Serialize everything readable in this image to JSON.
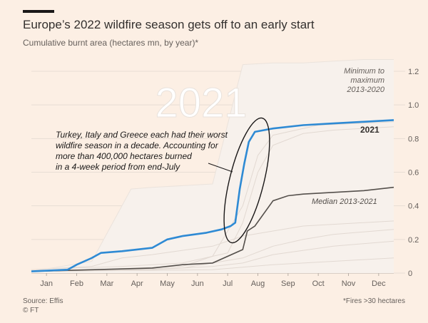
{
  "header": {
    "title": "Europe’s 2022 wildfire season gets off to an early start",
    "subtitle": "Cumulative burnt area (hectares mn, by year)*"
  },
  "footer": {
    "source": "Source: Effis",
    "credit": "© FT",
    "note": "*Fires >30 hectares"
  },
  "colors": {
    "background": "#fcefe4",
    "band": "#f7f1ec",
    "highlight": "#2e8ad4",
    "median": "#55504c",
    "other_years": "#e2d9d2",
    "grid": "#e7ddd4",
    "axis_text": "#66605c"
  },
  "chart_data": {
    "type": "line",
    "x_unit": "months (Jan to Dec)",
    "xticks": [
      "Jan",
      "Feb",
      "Mar",
      "Apr",
      "May",
      "Jun",
      "Jul",
      "Aug",
      "Sep",
      "Oct",
      "Nov",
      "Dec"
    ],
    "yticks": [
      "0",
      "0.2",
      "0.4",
      "0.6",
      "0.8",
      "1.0",
      "1.2"
    ],
    "ylim": [
      0,
      1.2
    ],
    "y_axis_side": "right",
    "grid": true,
    "watermark": "2021",
    "band": {
      "name": "Minimum to maximum 2013-2020",
      "label_lines": [
        "Minimum to",
        "maximum",
        "2013-2020"
      ],
      "upper": [
        [
          0,
          0.01
        ],
        [
          1,
          0.04
        ],
        [
          2,
          0.07
        ],
        [
          3.3,
          0.5
        ],
        [
          4,
          0.51
        ],
        [
          5,
          0.52
        ],
        [
          6,
          0.53
        ],
        [
          7,
          1.24
        ],
        [
          8,
          1.25
        ],
        [
          9,
          1.25
        ],
        [
          10,
          1.26
        ],
        [
          11,
          1.27
        ],
        [
          12,
          1.27
        ]
      ],
      "lower": [
        [
          0,
          0
        ],
        [
          12,
          0
        ]
      ]
    },
    "series": [
      {
        "name": "2021",
        "values": [
          [
            0,
            0.01
          ],
          [
            1.2,
            0.02
          ],
          [
            1.5,
            0.05
          ],
          [
            2,
            0.09
          ],
          [
            2.3,
            0.12
          ],
          [
            3,
            0.13
          ],
          [
            4,
            0.15
          ],
          [
            4.5,
            0.2
          ],
          [
            5,
            0.22
          ],
          [
            5.8,
            0.24
          ],
          [
            6.3,
            0.26
          ],
          [
            6.6,
            0.28
          ],
          [
            6.75,
            0.3
          ],
          [
            6.9,
            0.5
          ],
          [
            7.05,
            0.65
          ],
          [
            7.2,
            0.78
          ],
          [
            7.4,
            0.84
          ],
          [
            8,
            0.86
          ],
          [
            9,
            0.88
          ],
          [
            10,
            0.89
          ],
          [
            11,
            0.9
          ],
          [
            12,
            0.91
          ]
        ]
      },
      {
        "name": "Median 2013-2021",
        "values": [
          [
            0,
            0.01
          ],
          [
            2,
            0.02
          ],
          [
            4,
            0.03
          ],
          [
            5,
            0.05
          ],
          [
            6,
            0.06
          ],
          [
            7,
            0.14
          ],
          [
            7.15,
            0.25
          ],
          [
            7.4,
            0.28
          ],
          [
            8,
            0.43
          ],
          [
            8.5,
            0.46
          ],
          [
            9,
            0.47
          ],
          [
            10,
            0.48
          ],
          [
            11,
            0.49
          ],
          [
            12,
            0.51
          ]
        ]
      }
    ],
    "other_years": [
      [
        [
          0,
          0.01
        ],
        [
          1.5,
          0.03
        ],
        [
          3,
          0.04
        ],
        [
          5,
          0.06
        ],
        [
          6.5,
          0.12
        ],
        [
          7,
          0.3
        ],
        [
          7.5,
          0.6
        ],
        [
          8,
          0.76
        ],
        [
          9,
          0.83
        ],
        [
          10,
          0.85
        ],
        [
          12,
          0.87
        ]
      ],
      [
        [
          0,
          0.01
        ],
        [
          2,
          0.02
        ],
        [
          5,
          0.04
        ],
        [
          6,
          0.1
        ],
        [
          7,
          0.4
        ],
        [
          7.5,
          0.7
        ],
        [
          8,
          0.82
        ],
        [
          9.5,
          0.88
        ],
        [
          12,
          0.9
        ]
      ],
      [
        [
          0,
          0.02
        ],
        [
          2,
          0.04
        ],
        [
          3,
          0.09
        ],
        [
          4,
          0.11
        ],
        [
          6,
          0.16
        ],
        [
          7,
          0.22
        ],
        [
          8,
          0.25
        ],
        [
          9,
          0.28
        ],
        [
          12,
          0.31
        ]
      ],
      [
        [
          0,
          0.01
        ],
        [
          3,
          0.02
        ],
        [
          5,
          0.03
        ],
        [
          7,
          0.09
        ],
        [
          8,
          0.16
        ],
        [
          9,
          0.2
        ],
        [
          10,
          0.23
        ],
        [
          12,
          0.26
        ]
      ],
      [
        [
          0,
          0.01
        ],
        [
          4,
          0.02
        ],
        [
          6,
          0.04
        ],
        [
          7,
          0.06
        ],
        [
          8,
          0.11
        ],
        [
          10,
          0.16
        ],
        [
          12,
          0.19
        ]
      ],
      [
        [
          0,
          0.01
        ],
        [
          6,
          0.02
        ],
        [
          8,
          0.05
        ],
        [
          10,
          0.07
        ],
        [
          12,
          0.09
        ]
      ]
    ],
    "annotations": [
      {
        "text_lines": [
          "Turkey, Italy and Greece each had their worst",
          "wildfire season in a decade. Accounting for",
          "more than 400,000 hectares burned",
          "in a 4-week period from end-July"
        ]
      }
    ]
  }
}
